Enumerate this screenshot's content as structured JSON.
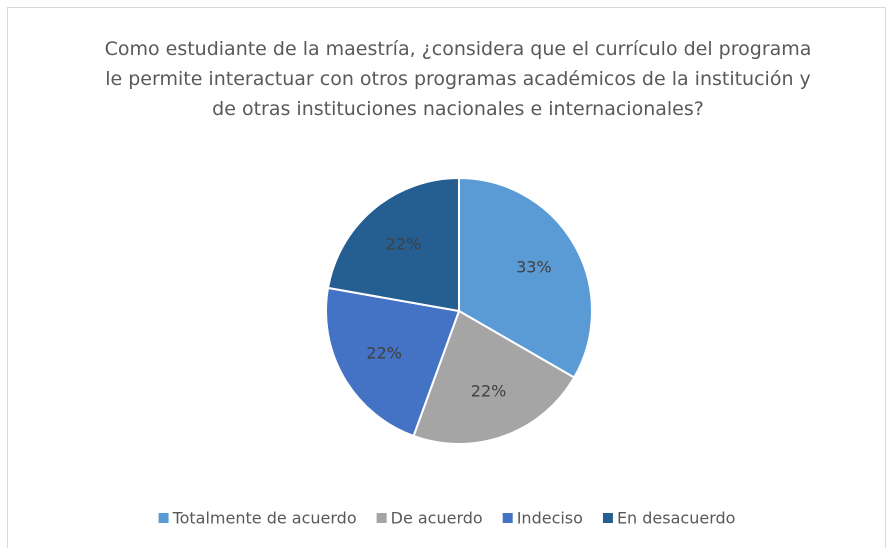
{
  "chart_data": {
    "type": "pie",
    "title": "Como estudiante de la maestría, ¿considera que el currículo del programa le permite interactuar con otros programas académicos de la institución y de otras instituciones nacionales e internacionales?",
    "categories": [
      "Totalmente de acuerdo",
      "De acuerdo",
      "Indeciso",
      "En desacuerdo"
    ],
    "values": [
      33,
      22,
      22,
      22
    ],
    "value_labels": [
      "33%",
      "22%",
      "22%",
      "22%"
    ],
    "colors": [
      "#5b9bd5",
      "#a5a5a5",
      "#4472c4",
      "#255e91"
    ],
    "legend": "bottom"
  }
}
